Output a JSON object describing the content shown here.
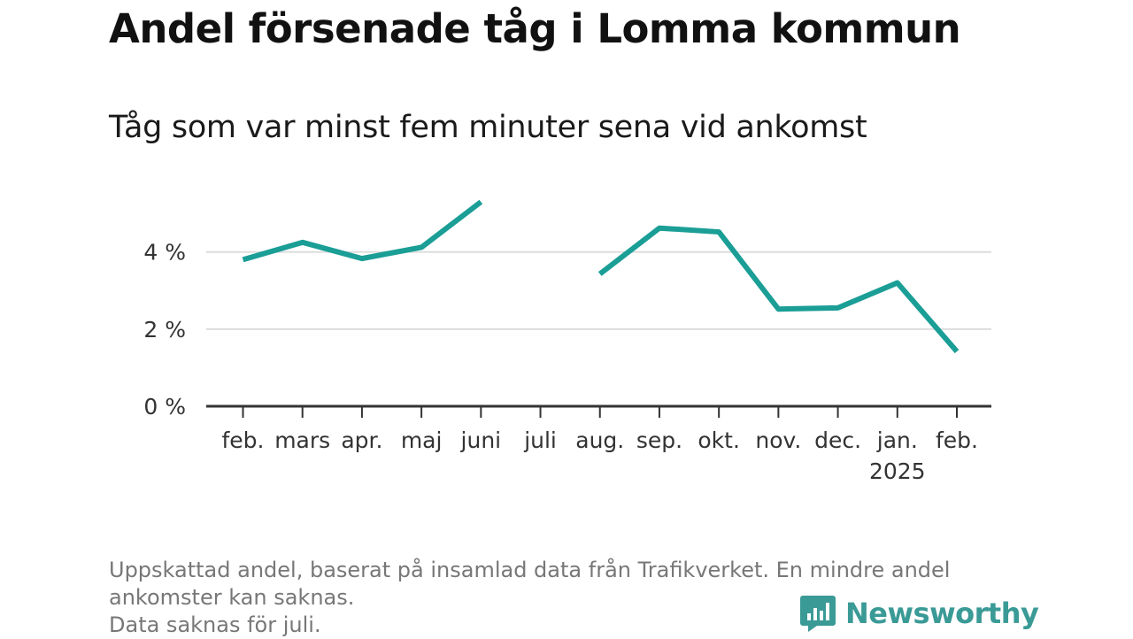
{
  "title": "Andel försenade tåg i Lomma kommun",
  "subtitle": "Tåg som var minst fem minuter sena vid ankomst",
  "footer": {
    "line1": "Uppskattad andel, baserat på insamlad data från Trafikverket. En mindre andel",
    "line2": "ankomster kan saknas.",
    "line3": "Data saknas för juli."
  },
  "brand": {
    "name": "Newsworthy",
    "icon": "newsworthy-logo-icon",
    "color": "#3a9a96"
  },
  "colors": {
    "line": "#1a9e96",
    "grid": "#dddddd",
    "axis": "#333333"
  },
  "chart_data": {
    "type": "line",
    "title": "Andel försenade tåg i Lomma kommun",
    "subtitle": "Tåg som var minst fem minuter sena vid ankomst",
    "categories": [
      "feb.",
      "mars",
      "apr.",
      "maj",
      "juni",
      "juli",
      "aug.",
      "sep.",
      "okt.",
      "nov.",
      "dec.",
      "jan.",
      "feb."
    ],
    "year_label": "2025",
    "year_label_under": "jan.",
    "values": [
      3.8,
      4.25,
      3.83,
      4.12,
      5.3,
      null,
      3.43,
      4.62,
      4.52,
      2.52,
      2.55,
      3.2,
      1.42
    ],
    "unit": "%",
    "ylim": [
      0,
      5.6
    ],
    "yticks": [
      0,
      2,
      4
    ],
    "ytick_labels": [
      "0 %",
      "2 %",
      "4 %"
    ],
    "grid": true,
    "legend": "none",
    "xlabel": "",
    "ylabel": ""
  }
}
